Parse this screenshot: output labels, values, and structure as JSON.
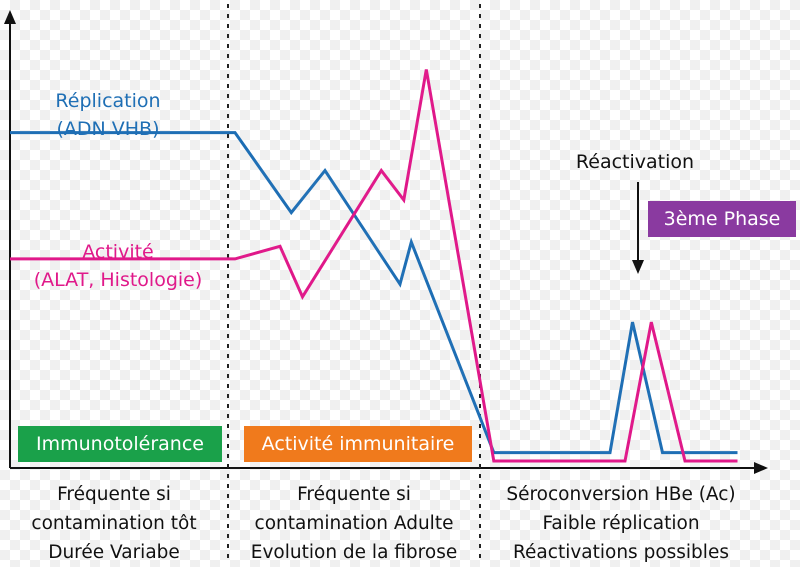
{
  "chart_data": {
    "type": "line",
    "series": [
      {
        "name": "Réplication (ADN VHB)",
        "label_line1": "Réplication",
        "label_line2": "(ADN VHB)",
        "color": "#1f6fb5",
        "points": [
          [
            0,
            0.78
          ],
          [
            0.3,
            0.78
          ],
          [
            0.375,
            0.59
          ],
          [
            0.42,
            0.69
          ],
          [
            0.52,
            0.42
          ],
          [
            0.535,
            0.52
          ],
          [
            0.645,
            0.02
          ],
          [
            0.8,
            0.02
          ],
          [
            0.83,
            0.33
          ],
          [
            0.87,
            0.02
          ],
          [
            0.97,
            0.02
          ]
        ]
      },
      {
        "name": "Activité (ALAT, Histologie)",
        "label_line1": "Activité",
        "label_line2": "(ALAT, Histologie)",
        "color": "#e0198a",
        "points": [
          [
            0,
            0.48
          ],
          [
            0.3,
            0.48
          ],
          [
            0.36,
            0.51
          ],
          [
            0.39,
            0.39
          ],
          [
            0.495,
            0.69
          ],
          [
            0.525,
            0.62
          ],
          [
            0.555,
            0.93
          ],
          [
            0.645,
            0.0
          ],
          [
            0.82,
            0.0
          ],
          [
            0.855,
            0.33
          ],
          [
            0.9,
            0.0
          ],
          [
            0.97,
            0.0
          ]
        ]
      }
    ],
    "annotation": {
      "text": "Réactivation",
      "color": "#111111"
    },
    "phases": [
      {
        "badge": "Immunotolérance",
        "badge_color": "#1aa14a",
        "desc": [
          "Fréquente si",
          "contamination tôt",
          "Durée Variabe"
        ]
      },
      {
        "badge": "Activité immunitaire",
        "badge_color": "#f07a1c",
        "desc": [
          "Fréquente si",
          "contamination Adulte",
          "Evolution de la fibrose"
        ]
      },
      {
        "badge": "3ème Phase",
        "badge_color": "#8a3aa0",
        "desc": [
          "Séroconversion HBe (Ac)",
          "Faible réplication",
          "Réactivations possibles"
        ]
      }
    ],
    "xlabel": "",
    "ylabel": "",
    "grid": false
  }
}
